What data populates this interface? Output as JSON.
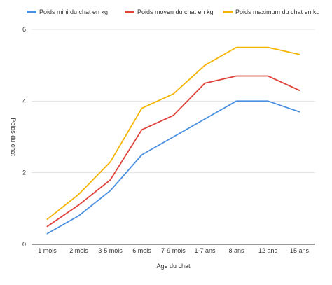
{
  "chart_data": {
    "type": "line",
    "categories": [
      "1 mois",
      "2 mois",
      "3-5 mois",
      "6 mois",
      "7-9 mois",
      "1-7 ans",
      "8 ans",
      "12 ans",
      "15 ans"
    ],
    "series": [
      {
        "name": "Poids mini du chat en kg",
        "color": "#4a8fe0",
        "values": [
          0.3,
          0.8,
          1.5,
          2.5,
          3.0,
          3.5,
          4.0,
          4.0,
          3.7
        ]
      },
      {
        "name": "Poids moyen du chat en kg",
        "color": "#e0413a",
        "values": [
          0.5,
          1.1,
          1.8,
          3.2,
          3.6,
          4.5,
          4.7,
          4.7,
          4.3
        ]
      },
      {
        "name": "Poids maximum du chat en kg",
        "color": "#f4b400",
        "values": [
          0.7,
          1.4,
          2.3,
          3.8,
          4.2,
          5.0,
          5.5,
          5.5,
          5.3
        ]
      }
    ],
    "xlabel": "Âge du chat",
    "ylabel": "Poids du chat",
    "ylim": [
      0,
      6
    ],
    "yticks": [
      "0",
      "2",
      "4",
      "6"
    ],
    "grid": true,
    "legend_position": "top"
  }
}
